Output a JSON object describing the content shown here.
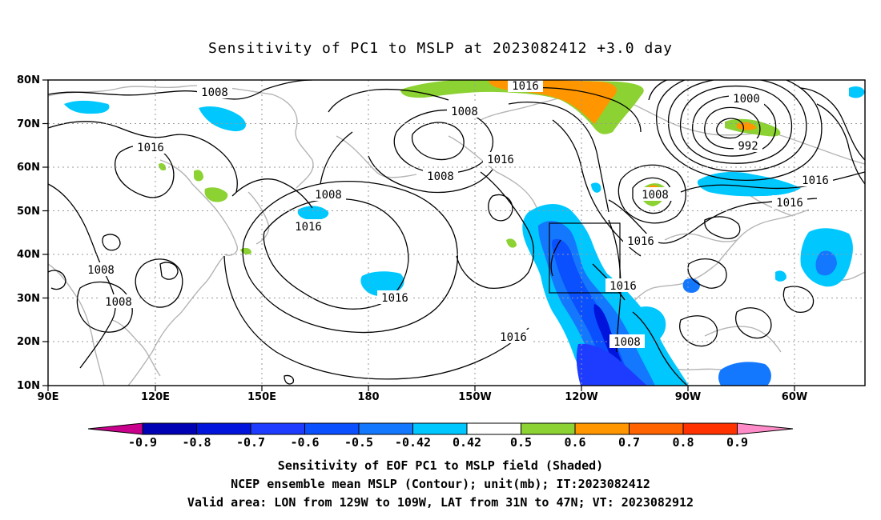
{
  "title": "Sensitivity of PC1 to MSLP at 2023082412 +3.0 day",
  "map": {
    "lat_labels": [
      "80N",
      "70N",
      "60N",
      "50N",
      "40N",
      "30N",
      "20N",
      "10N"
    ],
    "lon_labels": [
      "90E",
      "120E",
      "150E",
      "180",
      "150W",
      "120W",
      "90W",
      "60W"
    ],
    "contour_labels": [
      {
        "text": "1008"
      },
      {
        "text": "1016"
      },
      {
        "text": "1008"
      },
      {
        "text": "1016"
      },
      {
        "text": "1008"
      },
      {
        "text": "1016"
      },
      {
        "text": "1008"
      },
      {
        "text": "1016"
      },
      {
        "text": "1000"
      },
      {
        "text": "992"
      },
      {
        "text": "1016"
      },
      {
        "text": "1008"
      },
      {
        "text": "1016"
      },
      {
        "text": "1016"
      },
      {
        "text": "1016"
      },
      {
        "text": "1016"
      },
      {
        "text": "1008"
      },
      {
        "text": "1008"
      },
      {
        "text": "1008"
      },
      {
        "text": "1016"
      },
      {
        "text": "1016"
      }
    ],
    "valid_box": {
      "lon_from": "129W",
      "lon_to": "109W",
      "lat_from": "31N",
      "lat_to": "47N"
    }
  },
  "colorbar": {
    "labels": [
      "-0.9",
      "-0.8",
      "-0.7",
      "-0.6",
      "-0.5",
      "-0.42",
      "0.42",
      "0.5",
      "0.6",
      "0.7",
      "0.8",
      "0.9"
    ],
    "colors": [
      "#c8008c",
      "#0000b4",
      "#0014dc",
      "#1e3cff",
      "#0a50ff",
      "#1478ff",
      "#00c8ff",
      "#ffffff",
      "#8cd232",
      "#ff9600",
      "#ff6400",
      "#ff3200",
      "#ff0000",
      "#ff8cc8"
    ]
  },
  "captions": {
    "line1": "Sensitivity of EOF PC1 to MSLP field (Shaded)",
    "line2": "NCEP ensemble mean MSLP (Contour); unit(mb); IT:2023082412",
    "line3": "Valid area: LON from 129W to 109W, LAT from 31N to 47N; VT: 2023082912"
  }
}
